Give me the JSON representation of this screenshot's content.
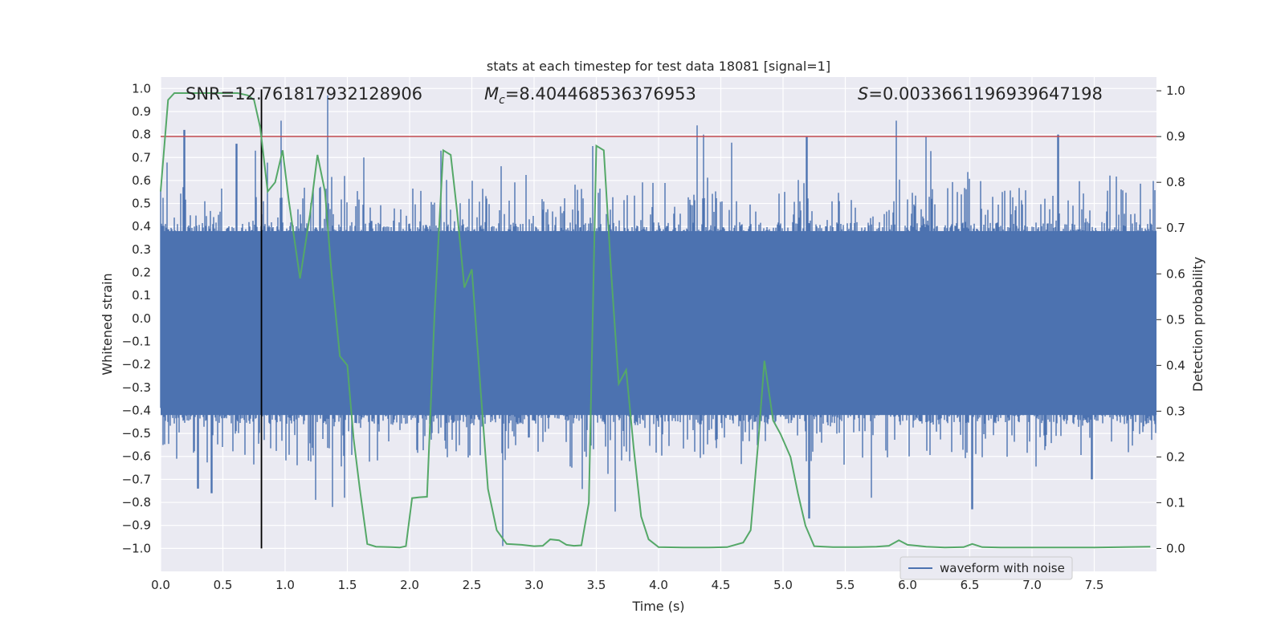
{
  "chart_data": {
    "type": "line",
    "title": "stats at each timestep for test data 18081 [signal=1]",
    "xlabel": "Time (s)",
    "ylabel": "Whitened strain",
    "y2label": "Detection probability",
    "xlim": [
      0.0,
      8.0
    ],
    "ylim": [
      -1.1,
      1.05
    ],
    "y2lim": [
      -0.05,
      1.03
    ],
    "x_ticks": [
      "0.0",
      "0.5",
      "1.0",
      "1.5",
      "2.0",
      "2.5",
      "3.0",
      "3.5",
      "4.0",
      "4.5",
      "5.0",
      "5.5",
      "6.0",
      "6.5",
      "7.0",
      "7.5"
    ],
    "y_ticks": [
      "1.0",
      "0.9",
      "0.8",
      "0.7",
      "0.6",
      "0.5",
      "0.4",
      "0.3",
      "0.2",
      "0.1",
      "0.0",
      "−0.1",
      "−0.2",
      "−0.3",
      "−0.4",
      "−0.5",
      "−0.6",
      "−0.7",
      "−0.8",
      "−0.9",
      "−1.0"
    ],
    "y2_ticks": [
      "1.0",
      "0.9",
      "0.8",
      "0.7",
      "0.6",
      "0.5",
      "0.4",
      "0.3",
      "0.2",
      "0.1",
      "0.0"
    ],
    "grid": true,
    "legend": {
      "position": "lower-right",
      "entries": [
        "waveform with noise"
      ]
    },
    "annotations": {
      "snr": "SNR=12.761817932128906",
      "mc_symbol": "M",
      "mc_sub": "c",
      "mc_value": "=8.404468536376953",
      "s_symbol": "S",
      "s_value": "=0.0033661196939647198"
    },
    "threshold": {
      "y2": 0.9,
      "color": "#c44e52"
    },
    "marker_time": 0.81,
    "series": [
      {
        "name": "waveform with noise",
        "axis": "left",
        "color": "#4c72b0",
        "style": "noise",
        "duration": 8.0,
        "envelope": [
          0.38,
          -0.42
        ],
        "peaks": [
          [
            0.19,
            0.82
          ],
          [
            0.61,
            0.76
          ],
          [
            0.76,
            0.73
          ],
          [
            0.97,
            0.86
          ],
          [
            1.34,
            0.97
          ],
          [
            1.63,
            0.7
          ],
          [
            2.25,
            0.73
          ],
          [
            3.47,
            0.75
          ],
          [
            4.31,
            0.84
          ],
          [
            4.36,
            0.8
          ],
          [
            5.19,
            0.79
          ],
          [
            5.91,
            0.86
          ],
          [
            6.15,
            0.79
          ],
          [
            7.21,
            0.8
          ],
          [
            0.3,
            -0.74
          ],
          [
            0.41,
            -0.76
          ],
          [
            1.38,
            -0.82
          ],
          [
            1.48,
            -0.78
          ],
          [
            2.75,
            -0.99
          ],
          [
            3.65,
            -0.84
          ],
          [
            5.21,
            -0.87
          ],
          [
            6.52,
            -0.83
          ],
          [
            7.48,
            -0.7
          ],
          [
            5.71,
            -0.78
          ]
        ]
      },
      {
        "name": "",
        "axis": "right",
        "color": "#55a868",
        "style": "line",
        "points": [
          [
            0.0,
            0.78
          ],
          [
            0.06,
            0.98
          ],
          [
            0.11,
            0.995
          ],
          [
            0.2,
            0.995
          ],
          [
            0.5,
            0.995
          ],
          [
            0.62,
            0.995
          ],
          [
            0.7,
            0.99
          ],
          [
            0.75,
            0.98
          ],
          [
            0.8,
            0.92
          ],
          [
            0.86,
            0.78
          ],
          [
            0.92,
            0.8
          ],
          [
            0.98,
            0.87
          ],
          [
            1.03,
            0.76
          ],
          [
            1.12,
            0.59
          ],
          [
            1.2,
            0.73
          ],
          [
            1.26,
            0.86
          ],
          [
            1.32,
            0.78
          ],
          [
            1.37,
            0.61
          ],
          [
            1.44,
            0.42
          ],
          [
            1.5,
            0.4
          ],
          [
            1.55,
            0.24
          ],
          [
            1.6,
            0.13
          ],
          [
            1.66,
            0.01
          ],
          [
            1.73,
            0.004
          ],
          [
            1.85,
            0.003
          ],
          [
            1.92,
            0.002
          ],
          [
            1.97,
            0.005
          ],
          [
            2.02,
            0.11
          ],
          [
            2.08,
            0.112
          ],
          [
            2.14,
            0.113
          ],
          [
            2.2,
            0.51
          ],
          [
            2.27,
            0.87
          ],
          [
            2.33,
            0.86
          ],
          [
            2.38,
            0.74
          ],
          [
            2.44,
            0.57
          ],
          [
            2.5,
            0.61
          ],
          [
            2.57,
            0.35
          ],
          [
            2.63,
            0.13
          ],
          [
            2.7,
            0.04
          ],
          [
            2.78,
            0.01
          ],
          [
            2.9,
            0.008
          ],
          [
            3.0,
            0.005
          ],
          [
            3.07,
            0.006
          ],
          [
            3.13,
            0.02
          ],
          [
            3.2,
            0.018
          ],
          [
            3.26,
            0.008
          ],
          [
            3.32,
            0.006
          ],
          [
            3.38,
            0.007
          ],
          [
            3.44,
            0.1
          ],
          [
            3.5,
            0.88
          ],
          [
            3.56,
            0.87
          ],
          [
            3.62,
            0.6
          ],
          [
            3.68,
            0.36
          ],
          [
            3.74,
            0.39
          ],
          [
            3.8,
            0.22
          ],
          [
            3.86,
            0.07
          ],
          [
            3.92,
            0.02
          ],
          [
            4.0,
            0.003
          ],
          [
            4.2,
            0.002
          ],
          [
            4.4,
            0.002
          ],
          [
            4.55,
            0.003
          ],
          [
            4.68,
            0.013
          ],
          [
            4.74,
            0.04
          ],
          [
            4.8,
            0.23
          ],
          [
            4.85,
            0.41
          ],
          [
            4.92,
            0.28
          ],
          [
            4.98,
            0.25
          ],
          [
            5.06,
            0.2
          ],
          [
            5.12,
            0.12
          ],
          [
            5.18,
            0.05
          ],
          [
            5.25,
            0.005
          ],
          [
            5.4,
            0.003
          ],
          [
            5.6,
            0.003
          ],
          [
            5.75,
            0.004
          ],
          [
            5.85,
            0.006
          ],
          [
            5.93,
            0.018
          ],
          [
            6.0,
            0.008
          ],
          [
            6.15,
            0.004
          ],
          [
            6.3,
            0.002
          ],
          [
            6.45,
            0.003
          ],
          [
            6.52,
            0.01
          ],
          [
            6.6,
            0.003
          ],
          [
            6.75,
            0.002
          ],
          [
            7.0,
            0.002
          ],
          [
            7.5,
            0.002
          ],
          [
            7.95,
            0.004
          ]
        ]
      }
    ]
  }
}
